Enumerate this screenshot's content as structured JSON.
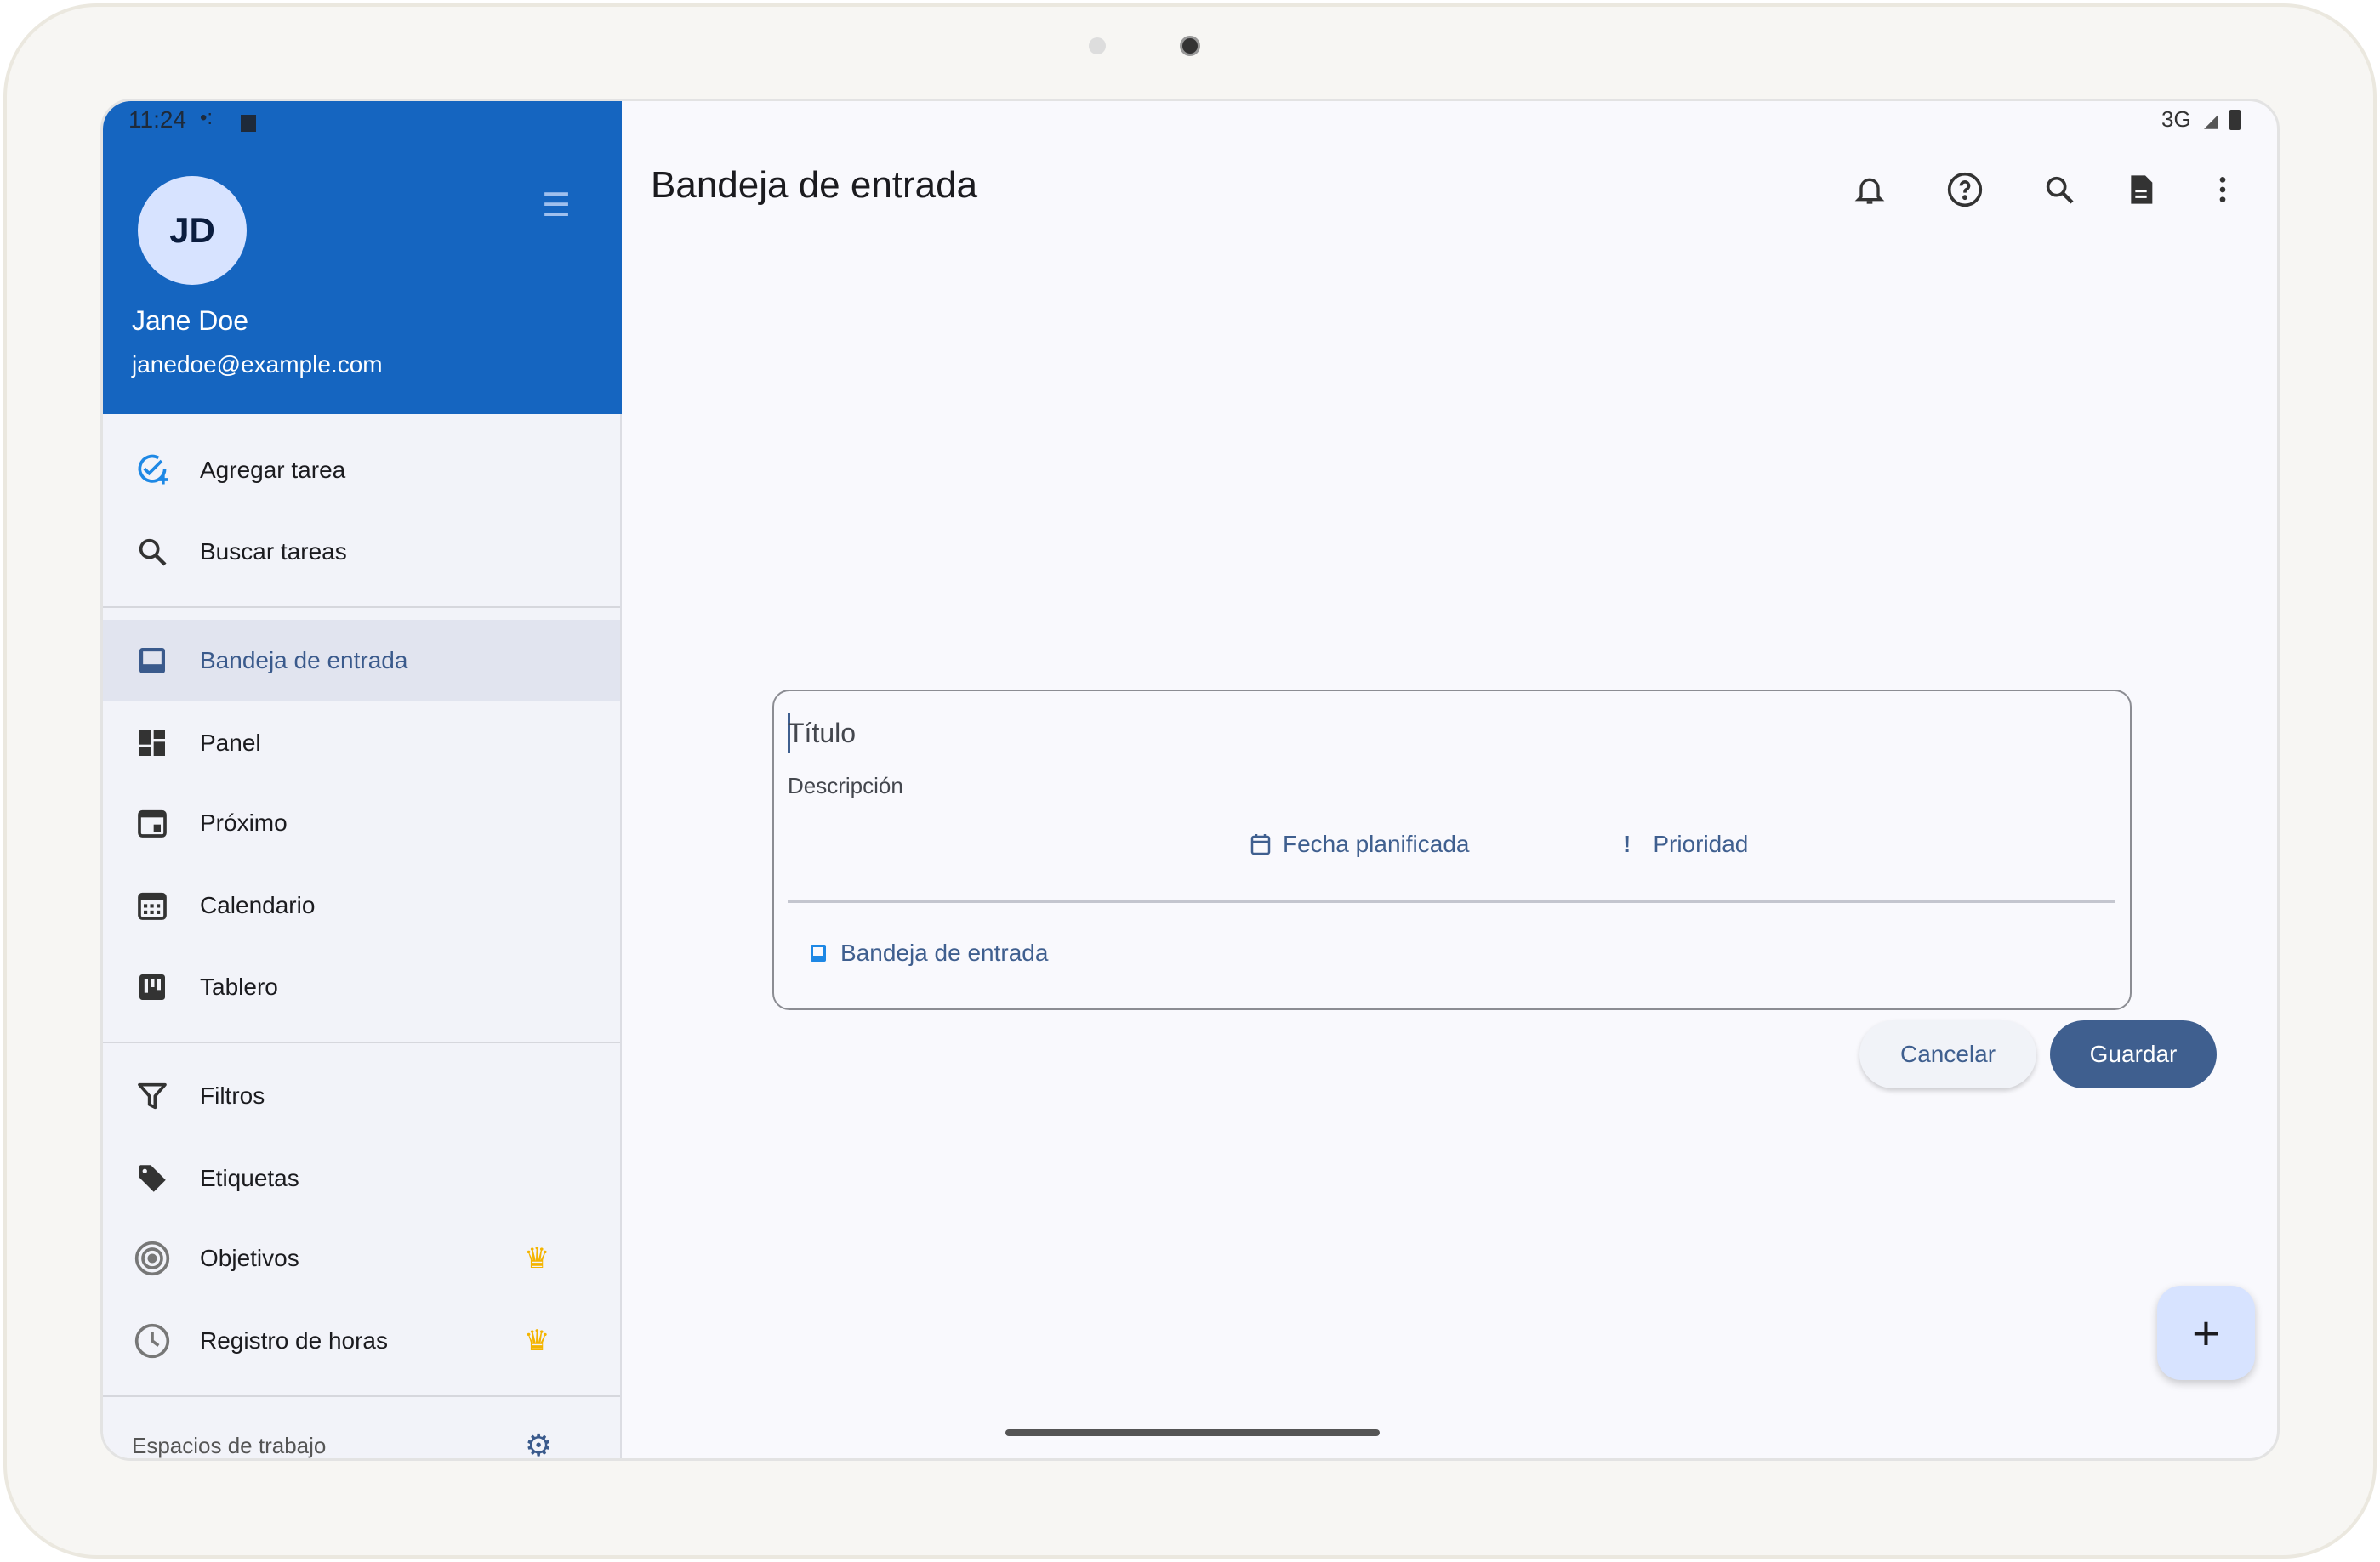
{
  "status_bar": {
    "time": "11:24",
    "network": "3G"
  },
  "drawer": {
    "avatar_initials": "JD",
    "user_name": "Jane Doe",
    "email": "janedoe@example.com",
    "actions": [
      {
        "label": "Agregar tarea",
        "icon": "add-task-icon"
      },
      {
        "label": "Buscar tareas",
        "icon": "search-icon"
      }
    ],
    "views": [
      {
        "label": "Bandeja de entrada",
        "icon": "inbox-icon",
        "selected": true
      },
      {
        "label": "Panel",
        "icon": "dashboard-icon"
      },
      {
        "label": "Próximo",
        "icon": "calendar-event-icon"
      },
      {
        "label": "Calendario",
        "icon": "calendar-month-icon"
      },
      {
        "label": "Tablero",
        "icon": "board-icon"
      }
    ],
    "tools": [
      {
        "label": "Filtros",
        "icon": "filter-icon"
      },
      {
        "label": "Etiquetas",
        "icon": "tag-icon"
      },
      {
        "label": "Objetivos",
        "icon": "target-icon",
        "premium": true
      },
      {
        "label": "Registro de horas",
        "icon": "clock-icon",
        "premium": true
      }
    ],
    "workspaces_label": "Espacios de trabajo"
  },
  "header": {
    "title": "Bandeja de entrada",
    "icons": [
      "bell-icon",
      "help-icon",
      "search-icon",
      "document-icon",
      "more-vert-icon"
    ]
  },
  "task_form": {
    "title_placeholder": "Título",
    "description_placeholder": "Descripción",
    "scheduled_date_label": "Fecha planificada",
    "priority_label": "Prioridad",
    "priority_symbol": "!",
    "project_label": "Bandeja de entrada",
    "cancel_label": "Cancelar",
    "save_label": "Guardar"
  },
  "fab_symbol": "+",
  "colors": {
    "header_blue": "#1565c0",
    "accent": "#3f5f8f",
    "crown": "#f4b400"
  }
}
